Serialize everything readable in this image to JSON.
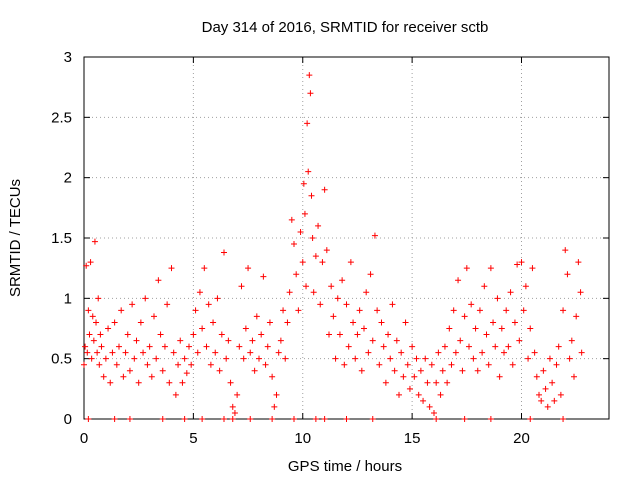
{
  "chart_data": {
    "type": "scatter",
    "title": "Day 314 of 2016, SRMTID for receiver sctb",
    "xlabel": "GPS time / hours",
    "ylabel": "SRMTID / TECUs",
    "xlim": [
      0,
      24
    ],
    "ylim": [
      0,
      3
    ],
    "xticks": [
      0,
      5,
      10,
      15,
      20
    ],
    "yticks": [
      0,
      0.5,
      1,
      1.5,
      2,
      2.5,
      3
    ],
    "xtick_labels": [
      "0",
      "5",
      "10",
      "15",
      "20"
    ],
    "ytick_labels": [
      "0",
      "0.5",
      "1",
      "1.5",
      "2",
      "2.5",
      "3"
    ],
    "grid": true,
    "marker": "+",
    "color": "#ff0000",
    "series": [
      {
        "name": "SRMTID",
        "points": [
          [
            0.0,
            0.45
          ],
          [
            0.05,
            0.6
          ],
          [
            0.1,
            1.27
          ],
          [
            0.15,
            0.55
          ],
          [
            0.2,
            0.9
          ],
          [
            0.25,
            0.7
          ],
          [
            0.3,
            1.3
          ],
          [
            0.35,
            0.5
          ],
          [
            0.4,
            0.85
          ],
          [
            0.45,
            0.65
          ],
          [
            0.5,
            1.47
          ],
          [
            0.55,
            0.8
          ],
          [
            0.6,
            0.55
          ],
          [
            0.65,
            1.0
          ],
          [
            0.7,
            0.45
          ],
          [
            0.75,
            0.7
          ],
          [
            0.8,
            0.6
          ],
          [
            0.9,
            0.35
          ],
          [
            1.0,
            0.5
          ],
          [
            1.1,
            0.75
          ],
          [
            1.2,
            0.3
          ],
          [
            1.3,
            0.55
          ],
          [
            1.4,
            0.8
          ],
          [
            1.5,
            0.45
          ],
          [
            1.6,
            0.6
          ],
          [
            1.7,
            0.9
          ],
          [
            1.8,
            0.35
          ],
          [
            1.9,
            0.55
          ],
          [
            2.0,
            0.7
          ],
          [
            2.1,
            0.4
          ],
          [
            2.2,
            0.95
          ],
          [
            2.3,
            0.5
          ],
          [
            2.4,
            0.65
          ],
          [
            2.5,
            0.3
          ],
          [
            2.6,
            0.8
          ],
          [
            2.7,
            0.55
          ],
          [
            2.8,
            1.0
          ],
          [
            2.9,
            0.45
          ],
          [
            3.0,
            0.6
          ],
          [
            3.1,
            0.35
          ],
          [
            3.2,
            0.85
          ],
          [
            3.3,
            0.5
          ],
          [
            3.4,
            1.15
          ],
          [
            3.5,
            0.7
          ],
          [
            3.6,
            0.4
          ],
          [
            3.7,
            0.6
          ],
          [
            3.8,
            0.95
          ],
          [
            3.9,
            0.3
          ],
          [
            4.0,
            1.25
          ],
          [
            4.1,
            0.55
          ],
          [
            4.2,
            0.2
          ],
          [
            4.3,
            0.45
          ],
          [
            4.4,
            0.65
          ],
          [
            4.5,
            0.3
          ],
          [
            4.6,
            0.5
          ],
          [
            4.7,
            0.38
          ],
          [
            4.8,
            0.6
          ],
          [
            4.9,
            0.45
          ],
          [
            5.0,
            0.7
          ],
          [
            5.1,
            0.9
          ],
          [
            5.2,
            0.55
          ],
          [
            5.3,
            1.05
          ],
          [
            5.4,
            0.75
          ],
          [
            5.5,
            1.25
          ],
          [
            5.6,
            0.6
          ],
          [
            5.7,
            0.95
          ],
          [
            5.8,
            0.45
          ],
          [
            5.9,
            0.8
          ],
          [
            6.0,
            0.55
          ],
          [
            6.1,
            1.0
          ],
          [
            6.2,
            0.4
          ],
          [
            6.3,
            0.7
          ],
          [
            6.4,
            1.38
          ],
          [
            6.5,
            0.5
          ],
          [
            6.6,
            0.65
          ],
          [
            6.7,
            0.3
          ],
          [
            6.8,
            0.1
          ],
          [
            6.9,
            0.05
          ],
          [
            7.0,
            0.2
          ],
          [
            7.1,
            0.6
          ],
          [
            7.2,
            1.1
          ],
          [
            7.3,
            0.5
          ],
          [
            7.4,
            0.75
          ],
          [
            7.5,
            1.25
          ],
          [
            7.6,
            0.55
          ],
          [
            7.7,
            0.65
          ],
          [
            7.8,
            0.4
          ],
          [
            7.9,
            0.85
          ],
          [
            8.0,
            0.5
          ],
          [
            8.1,
            0.7
          ],
          [
            8.2,
            1.18
          ],
          [
            8.3,
            0.45
          ],
          [
            8.4,
            0.6
          ],
          [
            8.5,
            0.8
          ],
          [
            8.6,
            0.35
          ],
          [
            8.7,
            0.1
          ],
          [
            8.8,
            0.2
          ],
          [
            8.9,
            0.55
          ],
          [
            9.0,
            0.65
          ],
          [
            9.1,
            0.9
          ],
          [
            9.2,
            0.5
          ],
          [
            9.3,
            0.8
          ],
          [
            9.4,
            1.05
          ],
          [
            9.5,
            1.65
          ],
          [
            9.6,
            1.45
          ],
          [
            9.7,
            1.2
          ],
          [
            9.8,
            0.9
          ],
          [
            9.9,
            1.55
          ],
          [
            10.0,
            1.3
          ],
          [
            10.05,
            1.95
          ],
          [
            10.1,
            1.7
          ],
          [
            10.15,
            1.1
          ],
          [
            10.2,
            2.45
          ],
          [
            10.25,
            2.05
          ],
          [
            10.3,
            2.85
          ],
          [
            10.35,
            2.7
          ],
          [
            10.4,
            1.85
          ],
          [
            10.45,
            1.5
          ],
          [
            10.5,
            1.05
          ],
          [
            10.6,
            1.35
          ],
          [
            10.7,
            1.6
          ],
          [
            10.8,
            0.95
          ],
          [
            10.9,
            1.3
          ],
          [
            11.0,
            1.9
          ],
          [
            11.1,
            1.4
          ],
          [
            11.2,
            0.7
          ],
          [
            11.3,
            1.1
          ],
          [
            11.4,
            0.85
          ],
          [
            11.5,
            0.5
          ],
          [
            11.6,
            1.0
          ],
          [
            11.7,
            0.7
          ],
          [
            11.8,
            1.15
          ],
          [
            11.9,
            0.45
          ],
          [
            12.0,
            0.95
          ],
          [
            12.1,
            0.6
          ],
          [
            12.2,
            1.3
          ],
          [
            12.3,
            0.8
          ],
          [
            12.4,
            0.5
          ],
          [
            12.5,
            0.7
          ],
          [
            12.6,
            0.9
          ],
          [
            12.7,
            0.4
          ],
          [
            12.8,
            0.75
          ],
          [
            12.9,
            1.05
          ],
          [
            13.0,
            0.55
          ],
          [
            13.1,
            1.2
          ],
          [
            13.2,
            0.65
          ],
          [
            13.3,
            1.52
          ],
          [
            13.4,
            0.9
          ],
          [
            13.5,
            0.45
          ],
          [
            13.6,
            0.8
          ],
          [
            13.7,
            0.6
          ],
          [
            13.8,
            0.3
          ],
          [
            13.9,
            0.7
          ],
          [
            14.0,
            0.5
          ],
          [
            14.1,
            0.95
          ],
          [
            14.2,
            0.4
          ],
          [
            14.3,
            0.65
          ],
          [
            14.4,
            0.2
          ],
          [
            14.5,
            0.55
          ],
          [
            14.6,
            0.35
          ],
          [
            14.7,
            0.8
          ],
          [
            14.8,
            0.45
          ],
          [
            14.9,
            0.25
          ],
          [
            15.0,
            0.6
          ],
          [
            15.1,
            0.35
          ],
          [
            15.2,
            0.5
          ],
          [
            15.3,
            0.2
          ],
          [
            15.4,
            0.4
          ],
          [
            15.5,
            0.15
          ],
          [
            15.6,
            0.5
          ],
          [
            15.7,
            0.3
          ],
          [
            15.8,
            0.1
          ],
          [
            15.9,
            0.45
          ],
          [
            16.0,
            0.05
          ],
          [
            16.1,
            0.3
          ],
          [
            16.2,
            0.55
          ],
          [
            16.3,
            0.2
          ],
          [
            16.4,
            0.4
          ],
          [
            16.5,
            0.6
          ],
          [
            16.6,
            0.3
          ],
          [
            16.7,
            0.75
          ],
          [
            16.8,
            0.45
          ],
          [
            16.9,
            0.9
          ],
          [
            17.0,
            0.55
          ],
          [
            17.1,
            1.15
          ],
          [
            17.2,
            0.65
          ],
          [
            17.3,
            0.4
          ],
          [
            17.4,
            0.85
          ],
          [
            17.5,
            1.25
          ],
          [
            17.6,
            0.6
          ],
          [
            17.7,
            0.95
          ],
          [
            17.8,
            0.5
          ],
          [
            17.9,
            0.75
          ],
          [
            18.0,
            0.4
          ],
          [
            18.1,
            0.9
          ],
          [
            18.2,
            0.55
          ],
          [
            18.3,
            1.1
          ],
          [
            18.4,
            0.7
          ],
          [
            18.5,
            0.45
          ],
          [
            18.6,
            1.25
          ],
          [
            18.7,
            0.8
          ],
          [
            18.8,
            0.6
          ],
          [
            18.9,
            1.0
          ],
          [
            19.0,
            0.35
          ],
          [
            19.1,
            0.75
          ],
          [
            19.2,
            0.55
          ],
          [
            19.3,
            0.9
          ],
          [
            19.4,
            0.6
          ],
          [
            19.5,
            1.05
          ],
          [
            19.6,
            0.45
          ],
          [
            19.7,
            0.8
          ],
          [
            19.8,
            1.28
          ],
          [
            19.9,
            0.65
          ],
          [
            20.0,
            1.3
          ],
          [
            20.1,
            0.9
          ],
          [
            20.2,
            1.1
          ],
          [
            20.3,
            0.5
          ],
          [
            20.4,
            0.75
          ],
          [
            20.5,
            1.25
          ],
          [
            20.6,
            0.55
          ],
          [
            20.7,
            0.35
          ],
          [
            20.8,
            0.2
          ],
          [
            20.9,
            0.15
          ],
          [
            21.0,
            0.4
          ],
          [
            21.1,
            0.25
          ],
          [
            21.2,
            0.1
          ],
          [
            21.3,
            0.5
          ],
          [
            21.4,
            0.3
          ],
          [
            21.5,
            0.15
          ],
          [
            21.6,
            0.45
          ],
          [
            21.7,
            0.6
          ],
          [
            21.8,
            0.2
          ],
          [
            21.9,
            0.9
          ],
          [
            22.0,
            1.4
          ],
          [
            22.1,
            1.2
          ],
          [
            22.2,
            0.5
          ],
          [
            22.3,
            0.65
          ],
          [
            22.4,
            0.35
          ],
          [
            22.5,
            0.85
          ],
          [
            22.6,
            1.3
          ],
          [
            22.7,
            1.05
          ],
          [
            22.75,
            0.55
          ],
          [
            0.2,
            0.0
          ],
          [
            1.4,
            0.0
          ],
          [
            2.1,
            0.0
          ],
          [
            3.6,
            0.0
          ],
          [
            4.6,
            0.0
          ],
          [
            5.4,
            0.0
          ],
          [
            6.4,
            0.0
          ],
          [
            6.8,
            0.0
          ],
          [
            7.6,
            0.0
          ],
          [
            8.6,
            0.0
          ],
          [
            9.6,
            0.0
          ],
          [
            10.6,
            0.0
          ],
          [
            11.0,
            0.0
          ],
          [
            12.0,
            0.0
          ],
          [
            13.2,
            0.0
          ],
          [
            16.1,
            0.0
          ],
          [
            17.4,
            0.0
          ],
          [
            18.6,
            0.0
          ],
          [
            20.4,
            0.0
          ],
          [
            21.9,
            0.0
          ]
        ]
      }
    ]
  }
}
